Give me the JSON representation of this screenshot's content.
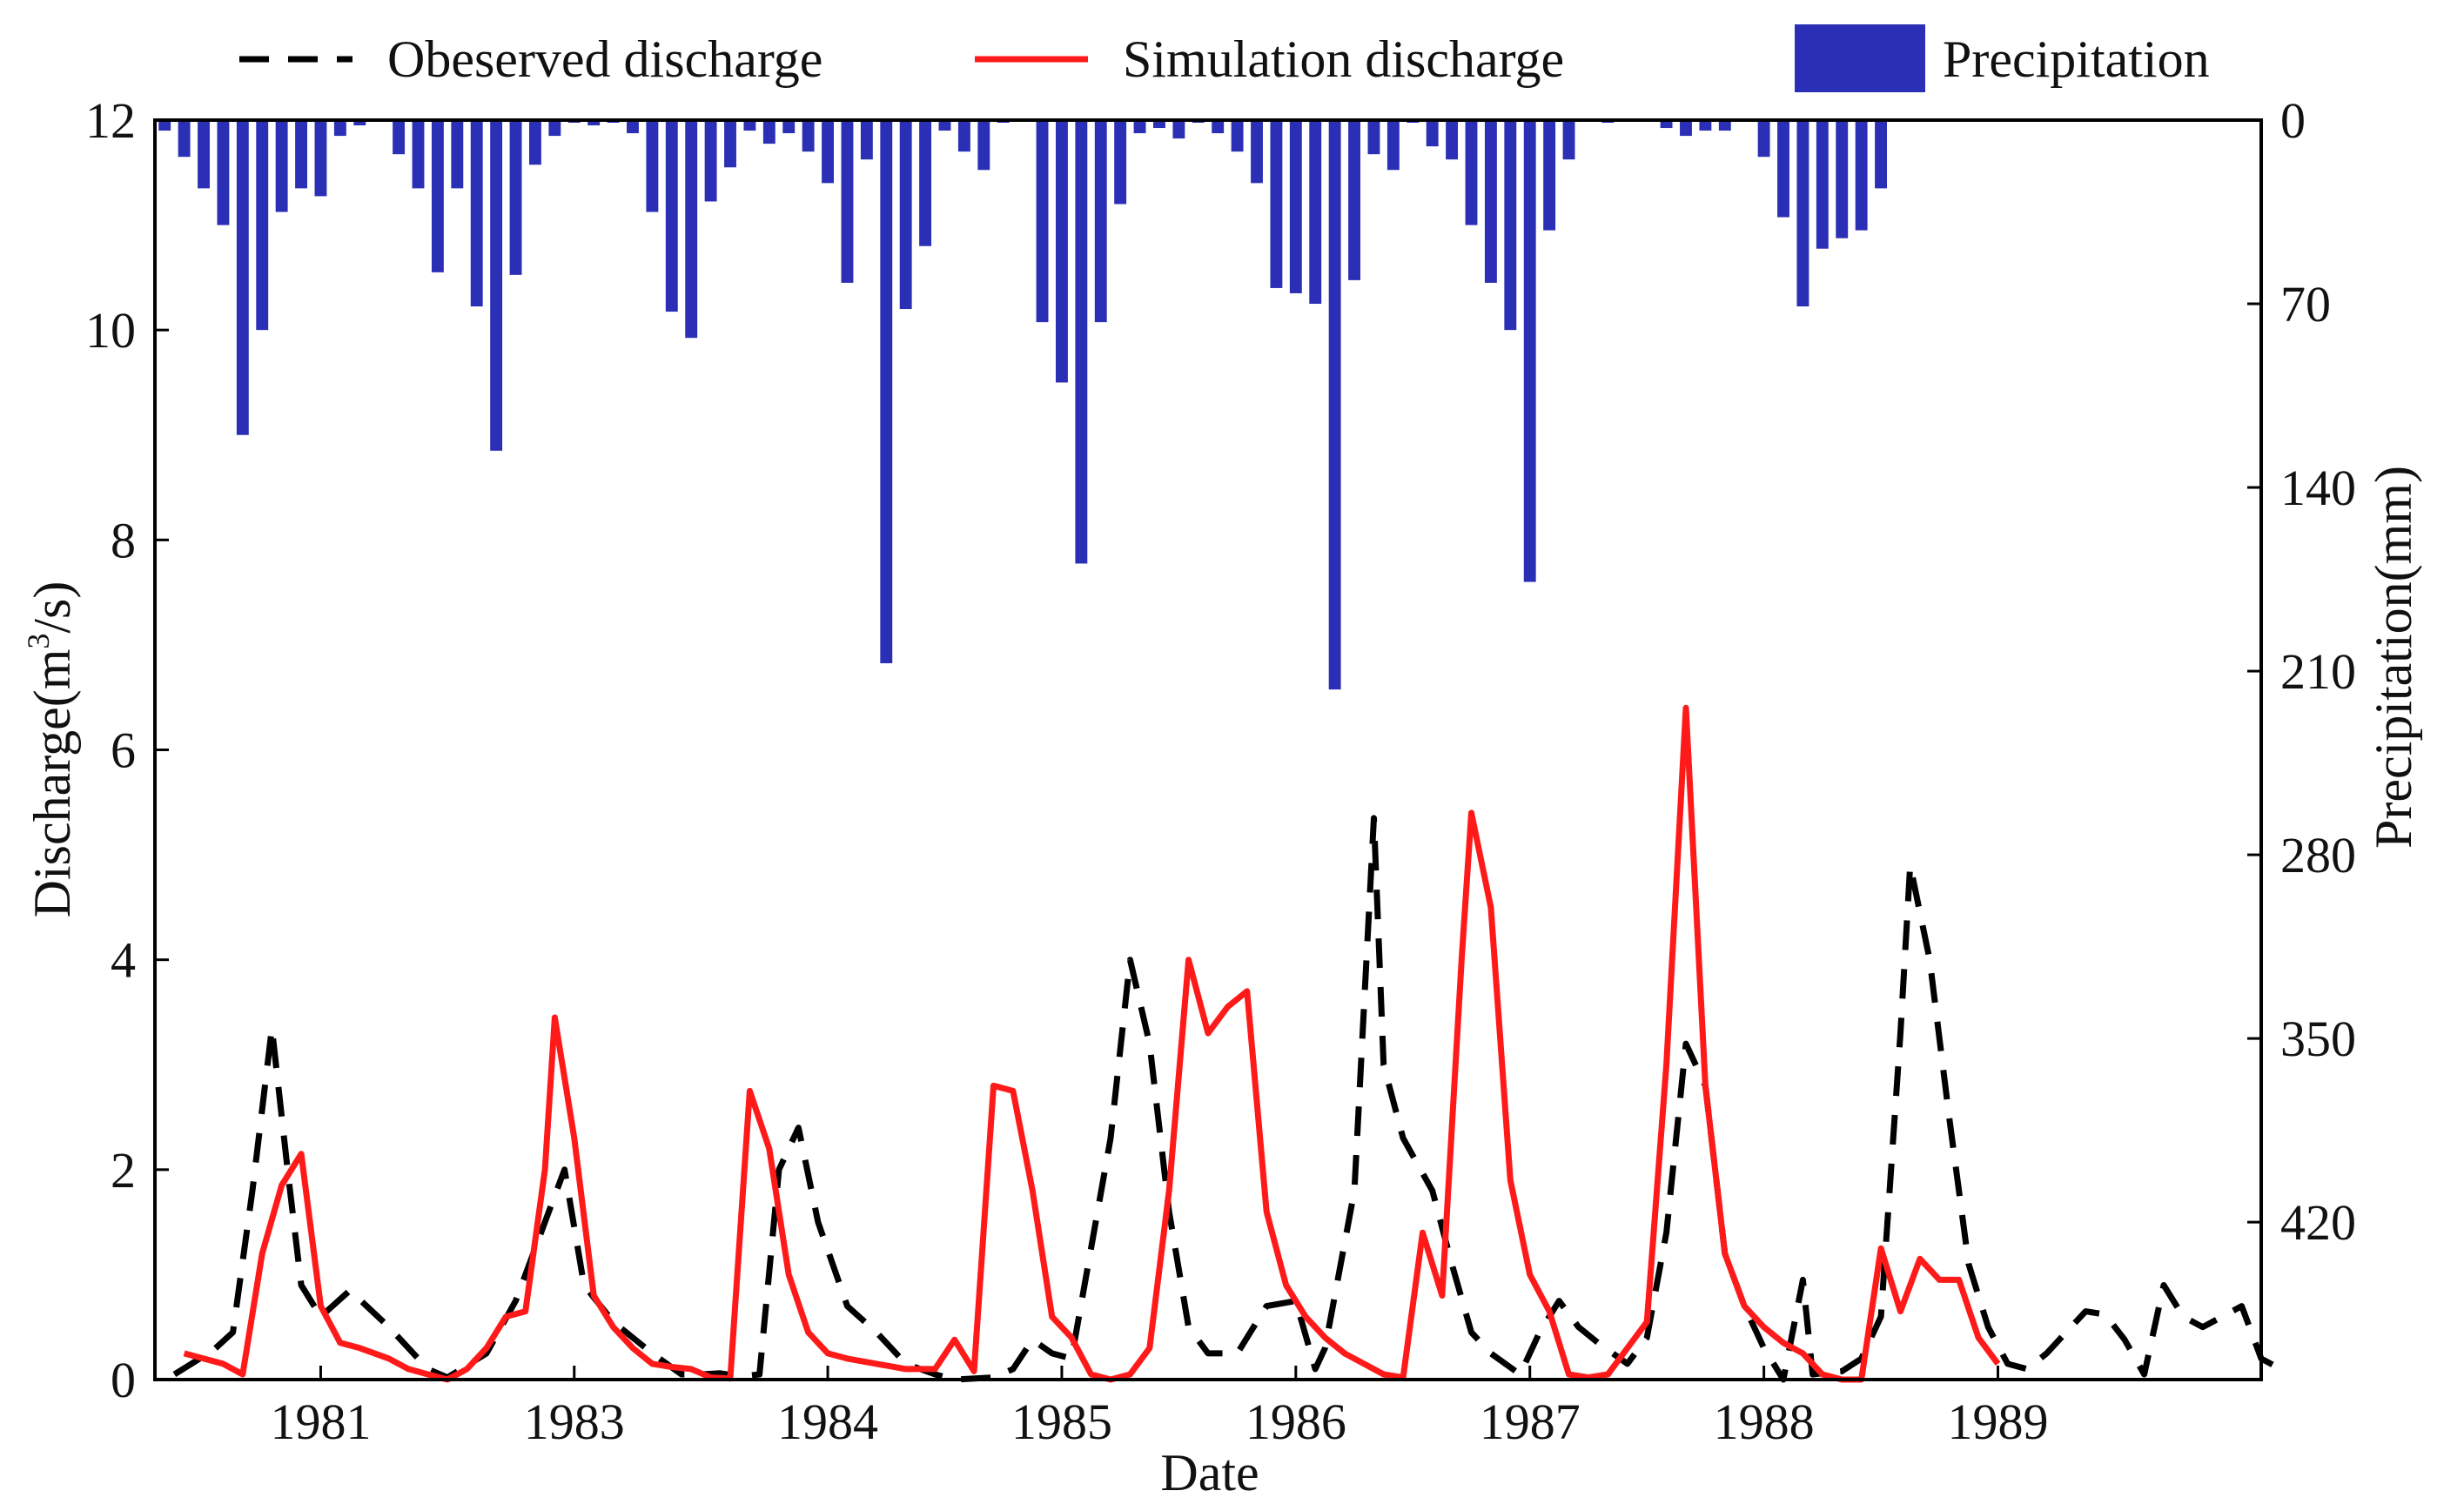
{
  "chart_data": {
    "type": "bar+line",
    "xlabel": "Date",
    "ylabel_left_prefix": "Discharge(m",
    "ylabel_left_sup": "3",
    "ylabel_left_suffix": "/s)",
    "ylabel_right": "Precipitation(mm)",
    "ylim_left": [
      0,
      12
    ],
    "yticks_left": [
      "0",
      "2",
      "4",
      "6",
      "8",
      "10",
      "12"
    ],
    "ylim_right_inverted": [
      0,
      480
    ],
    "yticks_right": [
      "0",
      "70",
      "140",
      "210",
      "280",
      "350",
      "420"
    ],
    "xlim_months": [
      0,
      108
    ],
    "xtick_labels": [
      "1981",
      "1983",
      "1984",
      "1985",
      "1986",
      "1987",
      "1988",
      "1989"
    ],
    "xtick_positions": [
      8.5,
      21.5,
      34.5,
      46.5,
      58.5,
      70.5,
      82.5,
      94.5
    ],
    "legend": {
      "observed": "Obeserved discharge",
      "simulated": "Simulation discharge",
      "precipitation": "Precipitation"
    },
    "colors": {
      "observed": "#000000",
      "simulated": "#ff1a1a",
      "precipitation": "#2b2fb5",
      "axis": "#000000"
    },
    "precipitation_mm": [
      4,
      14,
      26,
      40,
      120,
      80,
      35,
      26,
      29,
      6,
      2,
      0,
      13,
      26,
      58,
      26,
      71,
      126,
      59,
      17,
      6,
      1,
      2,
      1,
      5,
      35,
      73,
      83,
      31,
      18,
      4,
      9,
      5,
      12,
      24,
      62,
      15,
      207,
      72,
      48,
      4,
      12,
      19,
      1,
      0,
      77,
      100,
      169,
      77,
      32,
      5,
      3,
      7,
      1,
      5,
      12,
      24,
      64,
      66,
      70,
      217,
      61,
      13,
      19,
      1,
      10,
      15,
      40,
      62,
      80,
      176,
      42,
      15,
      0,
      1,
      0,
      0,
      3,
      6,
      4,
      4,
      0,
      14,
      37,
      71,
      49,
      45,
      42,
      26,
      0,
      0,
      0,
      0,
      0,
      0,
      0,
      0,
      0,
      0,
      0,
      0,
      0,
      0,
      0,
      0,
      0,
      0,
      0
    ],
    "series": [
      {
        "name": "Obeserved discharge",
        "points": [
          [
            1,
            0.05
          ],
          [
            3,
            0.28
          ],
          [
            4,
            0.45
          ],
          [
            5,
            1.8
          ],
          [
            6,
            3.35
          ],
          [
            6.8,
            2.0
          ],
          [
            7.5,
            0.9
          ],
          [
            8.5,
            0.6
          ],
          [
            10,
            0.85
          ],
          [
            12,
            0.5
          ],
          [
            14,
            0.1
          ],
          [
            15,
            0.02
          ],
          [
            17,
            0.25
          ],
          [
            18.5,
            0.75
          ],
          [
            20,
            1.5
          ],
          [
            21,
            2.0
          ],
          [
            22,
            0.9
          ],
          [
            23.5,
            0.55
          ],
          [
            25.5,
            0.25
          ],
          [
            27,
            0.05
          ],
          [
            28,
            0.05
          ],
          [
            29,
            0.06
          ],
          [
            30,
            0.03
          ],
          [
            31,
            0.05
          ],
          [
            32,
            2.0
          ],
          [
            33,
            2.4
          ],
          [
            34,
            1.5
          ],
          [
            35.5,
            0.7
          ],
          [
            37,
            0.45
          ],
          [
            38.5,
            0.15
          ],
          [
            40,
            0.05
          ],
          [
            41,
            0.0
          ],
          [
            43,
            0.02
          ],
          [
            44,
            0.1
          ],
          [
            45,
            0.38
          ],
          [
            46,
            0.25
          ],
          [
            47,
            0.2
          ],
          [
            49,
            2.3
          ],
          [
            50,
            4.0
          ],
          [
            51,
            3.2
          ],
          [
            52,
            1.6
          ],
          [
            53,
            0.5
          ],
          [
            54,
            0.25
          ],
          [
            55.5,
            0.25
          ],
          [
            57,
            0.7
          ],
          [
            58.5,
            0.75
          ],
          [
            59.5,
            0.1
          ],
          [
            60,
            0.3
          ],
          [
            61.5,
            1.8
          ],
          [
            62.5,
            5.35
          ],
          [
            63,
            3.0
          ],
          [
            64,
            2.3
          ],
          [
            65.5,
            1.8
          ],
          [
            66.5,
            1.1
          ],
          [
            67.5,
            0.45
          ],
          [
            68.5,
            0.25
          ],
          [
            70,
            0.05
          ],
          [
            71,
            0.45
          ],
          [
            72,
            0.75
          ],
          [
            73,
            0.5
          ],
          [
            74,
            0.35
          ],
          [
            75.5,
            0.15
          ],
          [
            76.5,
            0.4
          ],
          [
            77.5,
            1.4
          ],
          [
            78.5,
            3.2
          ],
          [
            79.5,
            2.8
          ],
          [
            80.5,
            1.2
          ],
          [
            81.5,
            0.7
          ],
          [
            82.5,
            0.3
          ],
          [
            83.5,
            0.0
          ],
          [
            84.5,
            0.95
          ],
          [
            85,
            0.05
          ],
          [
            86.5,
            0.08
          ],
          [
            87.5,
            0.2
          ],
          [
            88.5,
            0.6
          ],
          [
            89.5,
            3.3
          ],
          [
            90,
            4.9
          ],
          [
            91,
            4.0
          ],
          [
            92,
            2.5
          ],
          [
            93,
            1.1
          ],
          [
            94,
            0.5
          ],
          [
            95,
            0.15
          ],
          [
            96,
            0.1
          ],
          [
            97,
            0.25
          ],
          [
            98,
            0.45
          ],
          [
            99,
            0.65
          ],
          [
            100,
            0.62
          ],
          [
            101,
            0.38
          ],
          [
            102,
            0.05
          ],
          [
            103,
            0.9
          ],
          [
            104,
            0.6
          ],
          [
            105,
            0.5
          ],
          [
            106,
            0.6
          ],
          [
            107,
            0.7
          ],
          [
            108,
            0.2
          ],
          [
            109,
            0.1
          ]
        ]
      },
      {
        "name": "Simulation discharge",
        "points": [
          [
            1.5,
            0.25
          ],
          [
            2.5,
            0.2
          ],
          [
            3.5,
            0.15
          ],
          [
            4.5,
            0.05
          ],
          [
            5.5,
            1.2
          ],
          [
            6.5,
            1.85
          ],
          [
            7.5,
            2.15
          ],
          [
            8.5,
            0.7
          ],
          [
            9.5,
            0.35
          ],
          [
            10.5,
            0.3
          ],
          [
            12,
            0.2
          ],
          [
            13,
            0.1
          ],
          [
            14,
            0.05
          ],
          [
            15,
            0.0
          ],
          [
            16,
            0.1
          ],
          [
            17,
            0.3
          ],
          [
            18,
            0.6
          ],
          [
            19,
            0.65
          ],
          [
            20,
            2.0
          ],
          [
            20.5,
            3.45
          ],
          [
            21.5,
            2.3
          ],
          [
            22.5,
            0.8
          ],
          [
            23.5,
            0.5
          ],
          [
            24.5,
            0.3
          ],
          [
            25.5,
            0.15
          ],
          [
            26.5,
            0.12
          ],
          [
            27.5,
            0.1
          ],
          [
            28.5,
            0.02
          ],
          [
            29.5,
            0.01
          ],
          [
            30.5,
            2.75
          ],
          [
            31.5,
            2.2
          ],
          [
            32.5,
            1.0
          ],
          [
            33.5,
            0.45
          ],
          [
            34.5,
            0.25
          ],
          [
            35.5,
            0.2
          ],
          [
            37,
            0.15
          ],
          [
            38.5,
            0.1
          ],
          [
            40,
            0.1
          ],
          [
            41,
            0.38
          ],
          [
            42,
            0.08
          ],
          [
            43,
            2.8
          ],
          [
            44,
            2.75
          ],
          [
            45,
            1.8
          ],
          [
            46,
            0.6
          ],
          [
            47,
            0.4
          ],
          [
            48,
            0.05
          ],
          [
            49,
            0.0
          ],
          [
            50,
            0.05
          ],
          [
            51,
            0.3
          ],
          [
            52,
            1.8
          ],
          [
            53,
            4.0
          ],
          [
            54,
            3.3
          ],
          [
            55,
            3.55
          ],
          [
            56,
            3.7
          ],
          [
            57,
            1.6
          ],
          [
            58,
            0.9
          ],
          [
            59,
            0.6
          ],
          [
            60,
            0.4
          ],
          [
            61,
            0.25
          ],
          [
            62,
            0.15
          ],
          [
            63,
            0.05
          ],
          [
            64,
            0.02
          ],
          [
            65,
            1.4
          ],
          [
            66,
            0.8
          ],
          [
            67,
            4.0
          ],
          [
            67.5,
            5.4
          ],
          [
            68.5,
            4.5
          ],
          [
            69.5,
            1.9
          ],
          [
            70.5,
            1.0
          ],
          [
            71.5,
            0.65
          ],
          [
            72.5,
            0.05
          ],
          [
            73.5,
            0.02
          ],
          [
            74.5,
            0.05
          ],
          [
            75.5,
            0.3
          ],
          [
            76.5,
            0.55
          ],
          [
            77.5,
            3.0
          ],
          [
            78.5,
            6.4
          ],
          [
            79.5,
            2.8
          ],
          [
            80.5,
            1.2
          ],
          [
            81.5,
            0.7
          ],
          [
            82.5,
            0.5
          ],
          [
            83.5,
            0.35
          ],
          [
            84.5,
            0.25
          ],
          [
            85.5,
            0.05
          ],
          [
            86.5,
            0.0
          ],
          [
            87.5,
            0.0
          ],
          [
            88.5,
            1.25
          ],
          [
            89.5,
            0.65
          ],
          [
            90.5,
            1.15
          ],
          [
            91.5,
            0.95
          ],
          [
            92.5,
            0.95
          ],
          [
            93.5,
            0.4
          ],
          [
            94.5,
            0.15
          ]
        ]
      }
    ]
  }
}
